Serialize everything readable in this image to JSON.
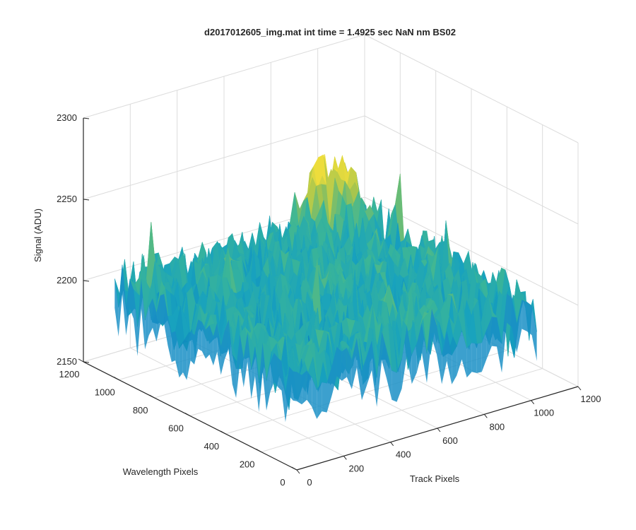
{
  "chart_data": {
    "type": "surface",
    "title": "d2017012605_img.mat int time = 1.4925 sec  NaN nm BS02",
    "xlabel": "Track Pixels",
    "ylabel": "Wavelength Pixels",
    "zlabel": "Signal (ADU)",
    "xlim": [
      0,
      1200
    ],
    "ylim": [
      0,
      1200
    ],
    "zlim": [
      2150,
      2300
    ],
    "x_ticks": [
      "0",
      "200",
      "400",
      "600",
      "800",
      "1000",
      "1200"
    ],
    "y_ticks": [
      "0",
      "200",
      "400",
      "600",
      "800",
      "1000",
      "1200"
    ],
    "z_ticks": [
      "2150",
      "2200",
      "2250",
      "2300"
    ],
    "grid": true,
    "colormap": "parula",
    "surface_summary": {
      "x_range": [
        0,
        1024
      ],
      "y_range": [
        0,
        1024
      ],
      "mean_signal": 2205,
      "noise_min": 2170,
      "noise_max": 2255,
      "hotspot": {
        "track_pixel": 900,
        "wavelength_pixel": 1000,
        "signal": 2248
      }
    }
  },
  "colors": {
    "axis": "#262626",
    "grid": "#dcdcdc",
    "surface_low": "#0072bd",
    "surface_mid": "#20b2aa",
    "surface_high": "#eddd3c"
  }
}
